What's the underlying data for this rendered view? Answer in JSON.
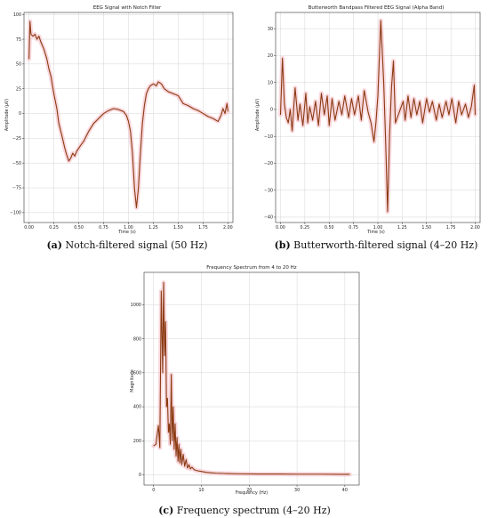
{
  "colors": {
    "signal": "#8b3a12",
    "halo": "#f7c7cf"
  },
  "captions": {
    "a_label": "(a)",
    "a_text": " Notch-filtered signal (50 Hz)",
    "b_label": "(b)",
    "b_text": " Butterworth-filtered signal (4–20 Hz)",
    "c_label": "(c)",
    "c_text": " Frequency spectrum (4–20 Hz)"
  },
  "chart_data": [
    {
      "type": "line",
      "title": "EEG Signal with Notch Filter",
      "xlabel": "Time (s)",
      "ylabel": "Amplitude (µV)",
      "xlim": [
        -0.05,
        2.05
      ],
      "ylim": [
        -110,
        102
      ],
      "xticks": [
        0.0,
        0.25,
        0.5,
        0.75,
        1.0,
        1.25,
        1.5,
        1.75,
        2.0
      ],
      "xtick_labels": [
        "0.00",
        "0.25",
        "0.50",
        "0.75",
        "1.00",
        "1.25",
        "1.50",
        "1.75",
        "2.00"
      ],
      "yticks": [
        100,
        75,
        50,
        25,
        0,
        -25,
        -50,
        -75,
        -100
      ],
      "ytick_labels": [
        "100",
        "75",
        "50",
        "25",
        "0",
        "−25",
        "−50",
        "−75",
        "−100"
      ],
      "grid": true,
      "x": [
        0.0,
        0.01,
        0.02,
        0.04,
        0.06,
        0.08,
        0.1,
        0.12,
        0.15,
        0.18,
        0.2,
        0.22,
        0.25,
        0.28,
        0.3,
        0.33,
        0.36,
        0.38,
        0.4,
        0.42,
        0.44,
        0.46,
        0.48,
        0.5,
        0.52,
        0.55,
        0.58,
        0.6,
        0.65,
        0.7,
        0.75,
        0.8,
        0.85,
        0.9,
        0.95,
        0.98,
        1.0,
        1.02,
        1.04,
        1.06,
        1.08,
        1.1,
        1.12,
        1.14,
        1.16,
        1.18,
        1.2,
        1.22,
        1.25,
        1.28,
        1.3,
        1.33,
        1.36,
        1.4,
        1.45,
        1.5,
        1.55,
        1.6,
        1.65,
        1.7,
        1.75,
        1.8,
        1.85,
        1.9,
        1.93,
        1.95,
        1.97,
        1.99,
        2.0
      ],
      "y": [
        55,
        93,
        80,
        78,
        80,
        75,
        78,
        72,
        65,
        55,
        45,
        38,
        20,
        5,
        -10,
        -22,
        -35,
        -42,
        -48,
        -45,
        -40,
        -43,
        -38,
        -35,
        -32,
        -28,
        -22,
        -18,
        -10,
        -5,
        0,
        3,
        5,
        4,
        2,
        -2,
        -8,
        -18,
        -40,
        -75,
        -95,
        -75,
        -40,
        -10,
        8,
        20,
        25,
        28,
        30,
        28,
        32,
        30,
        25,
        22,
        20,
        18,
        10,
        8,
        5,
        3,
        0,
        -3,
        -5,
        -8,
        -2,
        5,
        0,
        10,
        2
      ],
      "series": [
        {
          "values_ref": "y"
        }
      ]
    },
    {
      "type": "line",
      "title": "Butterworth Bandpass Filtered EEG Signal (Alpha Band)",
      "xlabel": "Time (s)",
      "ylabel": "Amplitude (µV)",
      "xlim": [
        -0.05,
        2.05
      ],
      "ylim": [
        -42,
        36
      ],
      "xticks": [
        0.0,
        0.25,
        0.5,
        0.75,
        1.0,
        1.25,
        1.5,
        1.75,
        2.0
      ],
      "xtick_labels": [
        "0.00",
        "0.25",
        "0.50",
        "0.75",
        "1.00",
        "1.25",
        "1.50",
        "1.75",
        "2.00"
      ],
      "yticks": [
        30,
        20,
        10,
        0,
        -10,
        -20,
        -30,
        -40
      ],
      "ytick_labels": [
        "30",
        "20",
        "10",
        "0",
        "−10",
        "−20",
        "−30",
        "−40"
      ],
      "grid": true,
      "x": [
        0.0,
        0.02,
        0.04,
        0.06,
        0.08,
        0.1,
        0.12,
        0.15,
        0.18,
        0.2,
        0.23,
        0.26,
        0.28,
        0.3,
        0.33,
        0.36,
        0.39,
        0.42,
        0.45,
        0.48,
        0.5,
        0.53,
        0.56,
        0.6,
        0.63,
        0.66,
        0.7,
        0.73,
        0.76,
        0.8,
        0.83,
        0.86,
        0.9,
        0.93,
        0.96,
        0.98,
        1.0,
        1.03,
        1.06,
        1.08,
        1.1,
        1.12,
        1.14,
        1.16,
        1.18,
        1.2,
        1.23,
        1.26,
        1.28,
        1.31,
        1.34,
        1.37,
        1.4,
        1.43,
        1.46,
        1.5,
        1.53,
        1.56,
        1.6,
        1.63,
        1.66,
        1.7,
        1.73,
        1.76,
        1.8,
        1.83,
        1.86,
        1.9,
        1.93,
        1.96,
        1.99,
        2.0
      ],
      "y": [
        -2,
        19,
        2,
        -3,
        -5,
        0,
        -8,
        8,
        -4,
        2,
        -6,
        6,
        -5,
        1,
        -4,
        3,
        -6,
        6,
        -2,
        5,
        -6,
        4,
        -4,
        3,
        -2,
        5,
        -3,
        4,
        -2,
        5,
        -4,
        7,
        -1,
        -5,
        -12,
        -5,
        5,
        33,
        10,
        -12,
        -38,
        -10,
        8,
        18,
        -5,
        -3,
        0,
        3,
        -4,
        5,
        -3,
        4,
        -2,
        3,
        -5,
        4,
        -1,
        3,
        -4,
        2,
        -3,
        3,
        -2,
        4,
        -5,
        3,
        -2,
        2,
        -3,
        1,
        9,
        -2
      ],
      "series": [
        {
          "values_ref": "y"
        }
      ]
    },
    {
      "type": "line",
      "title": "Frequency Spectrum from 4 to 20 Hz",
      "xlabel": "Frequency (Hz)",
      "ylabel": "Magnitude",
      "xlim": [
        -2,
        43
      ],
      "ylim": [
        -60,
        1190
      ],
      "xticks": [
        0,
        10,
        20,
        30,
        40
      ],
      "xtick_labels": [
        "0",
        "10",
        "20",
        "30",
        "40"
      ],
      "yticks": [
        0,
        200,
        400,
        600,
        800,
        1000
      ],
      "ytick_labels": [
        "0",
        "200",
        "400",
        "600",
        "800",
        "1000"
      ],
      "grid": true,
      "x": [
        0.0,
        0.5,
        1.0,
        1.3,
        1.6,
        1.9,
        2.1,
        2.3,
        2.5,
        2.7,
        2.9,
        3.1,
        3.3,
        3.5,
        3.7,
        3.9,
        4.1,
        4.3,
        4.5,
        4.7,
        4.9,
        5.1,
        5.3,
        5.5,
        5.7,
        5.9,
        6.2,
        6.5,
        6.8,
        7.1,
        7.4,
        7.7,
        8.0,
        8.5,
        9.0,
        10.0,
        11.0,
        12.0,
        13.0,
        15.0,
        18.0,
        22.0,
        26.0,
        30.0,
        35.0,
        40.0,
        41.0
      ],
      "y": [
        170,
        180,
        290,
        160,
        1080,
        600,
        1130,
        700,
        900,
        400,
        450,
        250,
        300,
        180,
        590,
        200,
        400,
        150,
        300,
        110,
        220,
        80,
        180,
        70,
        150,
        60,
        120,
        50,
        90,
        40,
        60,
        35,
        45,
        30,
        25,
        20,
        15,
        12,
        10,
        8,
        6,
        5,
        5,
        4,
        4,
        3,
        3
      ],
      "series": [
        {
          "values_ref": "y"
        }
      ]
    }
  ]
}
